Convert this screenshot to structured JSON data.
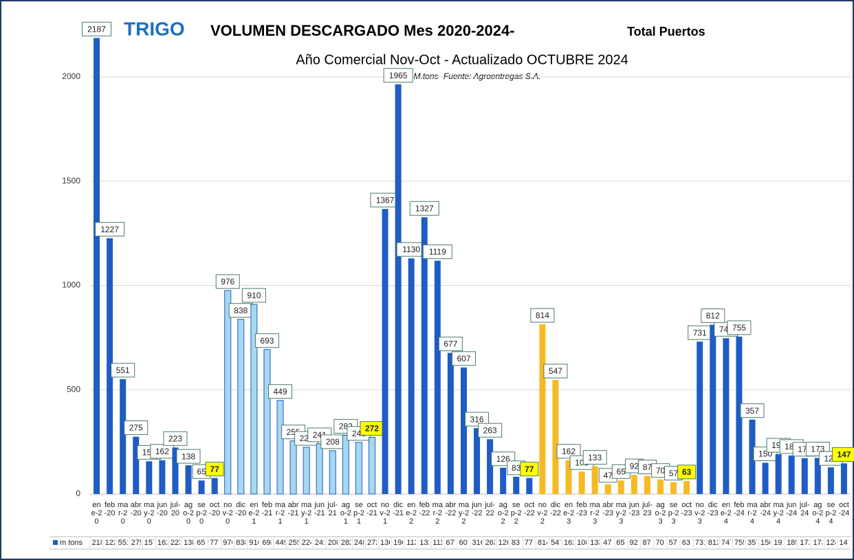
{
  "chart_data": {
    "type": "bar",
    "title_main": "TRIGO",
    "title": "VOLUMEN DESCARGADO  Mes  2020-2024-",
    "title_suffix": "Total Puertos",
    "subtitle": "Año Comercial Nov-Oct  - Actualizado OCTUBRE  2024",
    "note": "-en 000  M.tons- Fuente: Agroentregas S.A.",
    "categories": [
      "ene-20",
      "feb-20",
      "mar-20",
      "abr-20",
      "may-20",
      "jun-20",
      "jul-20",
      "ago-20",
      "sep-20",
      "oct-20",
      "nov-20",
      "dic-20",
      "ene-21",
      "feb-21",
      "mar-21",
      "abr-21",
      "may-21",
      "jun-21",
      "jul-21",
      "ago-21",
      "sep-21",
      "oct-21",
      "nov-21",
      "dic-21",
      "ene-22",
      "feb-22",
      "mar-22",
      "abr-22",
      "may-22",
      "jun-22",
      "jul-22",
      "ago-22",
      "sep-22",
      "oct-22",
      "nov-22",
      "dic-22",
      "ene-23",
      "feb-23",
      "mar-23",
      "abr-23",
      "may-23",
      "jun-23",
      "jul-23",
      "ago-23",
      "sep-23",
      "oct-23",
      "nov-23",
      "dic-23",
      "ene-24",
      "feb-24",
      "mar-24",
      "abr-24",
      "may-24",
      "jun-24",
      "jul-24",
      "ago-24",
      "sep-24",
      "oct-24"
    ],
    "series": [
      {
        "name": "m tons",
        "values": [
          2187,
          1227,
          551,
          275,
          157,
          162,
          223,
          138,
          65,
          77,
          976,
          838,
          910,
          693,
          449,
          255,
          224,
          241,
          208,
          282,
          248,
          272,
          1367,
          1965,
          1130,
          1327,
          1119,
          677,
          607,
          316,
          263,
          126,
          83,
          77,
          814,
          547,
          162,
          108,
          133,
          47,
          65,
          92,
          87,
          70,
          57,
          63,
          731,
          812,
          747,
          755,
          357,
          150,
          191,
          185,
          172,
          173,
          128,
          147
        ],
        "colors": [
          "#1f5cc4",
          "#1f5cc4",
          "#1f5cc4",
          "#1f5cc4",
          "#1f5cc4",
          "#1f5cc4",
          "#1f5cc4",
          "#1f5cc4",
          "#1f5cc4",
          "#1f5cc4",
          "#a8d8ef",
          "#a8d8ef",
          "#a8d8ef",
          "#a8d8ef",
          "#a8d8ef",
          "#a8d8ef",
          "#a8d8ef",
          "#a8d8ef",
          "#a8d8ef",
          "#a8d8ef",
          "#a8d8ef",
          "#a8d8ef",
          "#1f5cc4",
          "#1f5cc4",
          "#1f5cc4",
          "#1f5cc4",
          "#1f5cc4",
          "#1f5cc4",
          "#1f5cc4",
          "#1f5cc4",
          "#1f5cc4",
          "#1f5cc4",
          "#1f5cc4",
          "#1f5cc4",
          "#f7b924",
          "#f7b924",
          "#f7b924",
          "#f7b924",
          "#f7b924",
          "#f7b924",
          "#f7b924",
          "#f7b924",
          "#f7b924",
          "#f7b924",
          "#f7b924",
          "#f7b924",
          "#1f5cc4",
          "#1f5cc4",
          "#1f5cc4",
          "#1f5cc4",
          "#1f5cc4",
          "#1f5cc4",
          "#1f5cc4",
          "#1f5cc4",
          "#1f5cc4",
          "#1f5cc4",
          "#1f5cc4",
          "#1f5cc4"
        ],
        "highlighted": [
          9,
          21,
          33,
          45,
          57
        ]
      }
    ],
    "ylim": [
      0,
      2300
    ],
    "yticks": [
      0,
      500,
      1000,
      1500,
      2000
    ],
    "grid": true
  }
}
